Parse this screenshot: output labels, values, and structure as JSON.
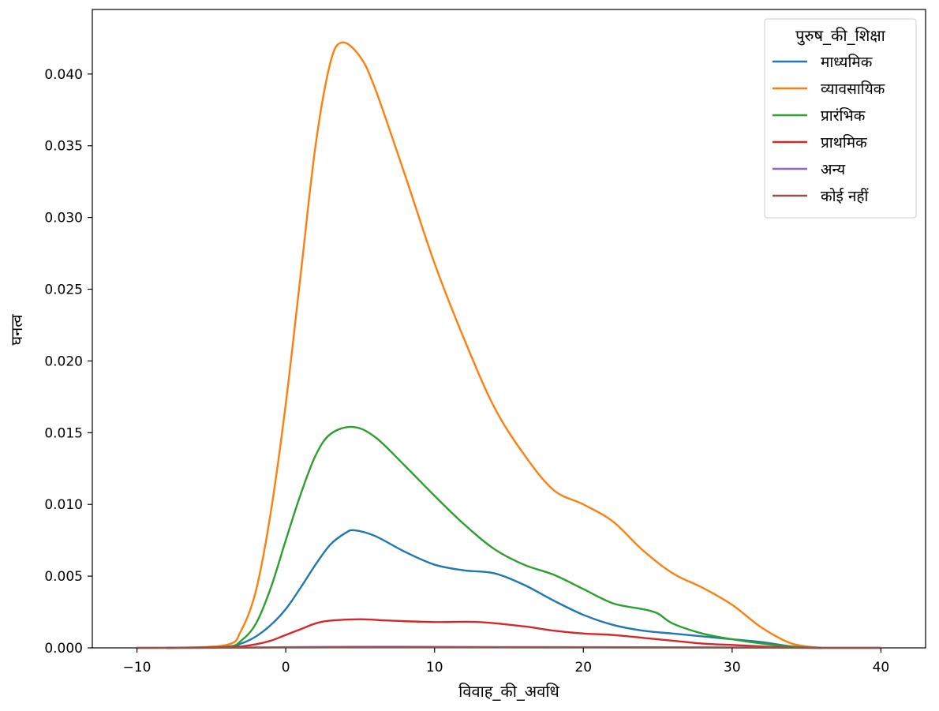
{
  "chart_data": {
    "type": "line",
    "title": "",
    "xlabel": "विवाह_की_अवधि",
    "ylabel": "घनत्व",
    "xlim": [
      -13,
      43
    ],
    "ylim": [
      0,
      0.0445
    ],
    "x_ticks": [
      -10,
      0,
      10,
      20,
      30,
      40
    ],
    "x_tick_labels": [
      "−10",
      "0",
      "10",
      "20",
      "30",
      "40"
    ],
    "y_ticks": [
      0,
      0.005,
      0.01,
      0.015,
      0.02,
      0.025,
      0.03,
      0.035,
      0.04
    ],
    "y_tick_labels": [
      "0.000",
      "0.005",
      "0.010",
      "0.015",
      "0.020",
      "0.025",
      "0.030",
      "0.035",
      "0.040"
    ],
    "grid": false,
    "legend": {
      "title": "पुरुष_की_शिक्षा",
      "position": "top-right"
    },
    "series": [
      {
        "name": "माध्यमिक",
        "color": "#1f77b4",
        "points": [
          [
            -8,
            0
          ],
          [
            -4,
            8e-05
          ],
          [
            -3,
            0.0003
          ],
          [
            -2,
            0.0008
          ],
          [
            -1,
            0.0016
          ],
          [
            0,
            0.0027
          ],
          [
            1,
            0.0042
          ],
          [
            2,
            0.0058
          ],
          [
            3,
            0.0072
          ],
          [
            4,
            0.008
          ],
          [
            4.6,
            0.0082
          ],
          [
            6,
            0.0078
          ],
          [
            8,
            0.0067
          ],
          [
            10,
            0.0058
          ],
          [
            12,
            0.0054
          ],
          [
            14,
            0.0052
          ],
          [
            16,
            0.0044
          ],
          [
            18,
            0.0033
          ],
          [
            20,
            0.0023
          ],
          [
            22,
            0.0016
          ],
          [
            24,
            0.0012
          ],
          [
            26,
            0.001
          ],
          [
            28,
            0.0008
          ],
          [
            30,
            0.0006
          ],
          [
            32,
            0.0004
          ],
          [
            34,
            0.0001
          ],
          [
            36,
            0
          ]
        ]
      },
      {
        "name": "व्यावसायिक",
        "color": "#ff7f0e",
        "points": [
          [
            -8,
            0
          ],
          [
            -4,
            0.0002
          ],
          [
            -3,
            0.0012
          ],
          [
            -2,
            0.004
          ],
          [
            -1,
            0.0095
          ],
          [
            0,
            0.017
          ],
          [
            1,
            0.026
          ],
          [
            2,
            0.035
          ],
          [
            3,
            0.0408
          ],
          [
            3.8,
            0.0422
          ],
          [
            5,
            0.0412
          ],
          [
            6,
            0.039
          ],
          [
            8,
            0.033
          ],
          [
            10,
            0.0268
          ],
          [
            12,
            0.0215
          ],
          [
            14,
            0.0168
          ],
          [
            16,
            0.0135
          ],
          [
            18,
            0.011
          ],
          [
            20,
            0.01
          ],
          [
            22,
            0.0088
          ],
          [
            24,
            0.0068
          ],
          [
            26,
            0.0052
          ],
          [
            28,
            0.0042
          ],
          [
            30,
            0.003
          ],
          [
            32,
            0.0014
          ],
          [
            34,
            0.0003
          ],
          [
            36,
            0
          ]
        ]
      },
      {
        "name": "प्रारंभिक",
        "color": "#2ca02c",
        "points": [
          [
            -8,
            0
          ],
          [
            -4,
            8e-05
          ],
          [
            -3,
            0.0005
          ],
          [
            -2,
            0.0017
          ],
          [
            -1,
            0.0042
          ],
          [
            0,
            0.0075
          ],
          [
            1,
            0.0107
          ],
          [
            2,
            0.0134
          ],
          [
            3,
            0.0149
          ],
          [
            4.5,
            0.0154
          ],
          [
            6,
            0.0147
          ],
          [
            8,
            0.0127
          ],
          [
            10,
            0.0106
          ],
          [
            12,
            0.0086
          ],
          [
            14,
            0.0069
          ],
          [
            16,
            0.0058
          ],
          [
            18,
            0.0051
          ],
          [
            20,
            0.0041
          ],
          [
            22,
            0.0031
          ],
          [
            24,
            0.0027
          ],
          [
            25,
            0.0024
          ],
          [
            26,
            0.0017
          ],
          [
            28,
            0.001
          ],
          [
            30,
            0.0006
          ],
          [
            32,
            0.0003
          ],
          [
            34,
            0.0001
          ],
          [
            36,
            0
          ]
        ]
      },
      {
        "name": "प्राथमिक",
        "color": "#d62728",
        "points": [
          [
            -8,
            0
          ],
          [
            -4,
            5e-05
          ],
          [
            -3,
            0.0001
          ],
          [
            -2,
            0.00025
          ],
          [
            -1,
            0.0005
          ],
          [
            0,
            0.0009
          ],
          [
            1,
            0.0013
          ],
          [
            2,
            0.0017
          ],
          [
            3,
            0.0019
          ],
          [
            5,
            0.002
          ],
          [
            7,
            0.0019
          ],
          [
            10,
            0.0018
          ],
          [
            13,
            0.0018
          ],
          [
            16,
            0.0015
          ],
          [
            18,
            0.0012
          ],
          [
            20,
            0.001
          ],
          [
            22,
            0.0009
          ],
          [
            24,
            0.0007
          ],
          [
            26,
            0.0005
          ],
          [
            28,
            0.0003
          ],
          [
            30,
            0.0002
          ],
          [
            32,
            0.0001
          ],
          [
            34,
            3e-05
          ],
          [
            36,
            0
          ]
        ]
      },
      {
        "name": "अन्य",
        "color": "#9467bd",
        "points": [
          [
            -10,
            0
          ],
          [
            -4,
            1e-05
          ],
          [
            0,
            5e-05
          ],
          [
            5,
            8e-05
          ],
          [
            10,
            7e-05
          ],
          [
            20,
            5e-05
          ],
          [
            30,
            3e-05
          ],
          [
            36,
            0
          ],
          [
            40,
            0
          ]
        ]
      },
      {
        "name": "कोई नहीं",
        "color": "#8c564b",
        "points": [
          [
            -10,
            0
          ],
          [
            -4,
            1e-05
          ],
          [
            0,
            3e-05
          ],
          [
            5,
            4e-05
          ],
          [
            10,
            4e-05
          ],
          [
            20,
            3e-05
          ],
          [
            30,
            2e-05
          ],
          [
            36,
            0
          ],
          [
            40,
            0
          ]
        ]
      }
    ]
  }
}
